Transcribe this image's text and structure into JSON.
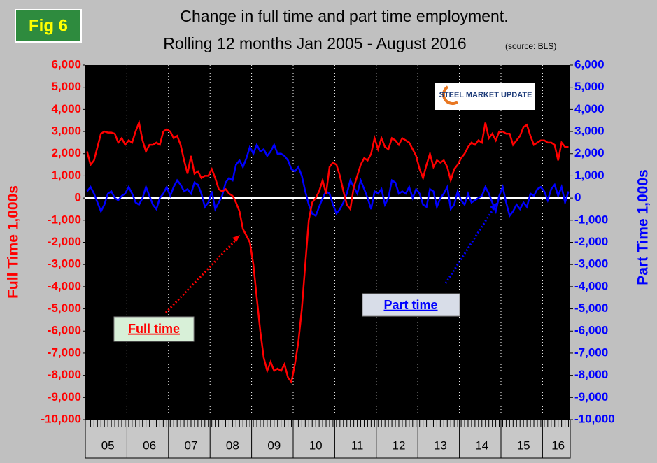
{
  "chart_data": {
    "type": "line",
    "fig_label": "Fig 6",
    "title": "Change in full time and part time employment.",
    "subtitle": "Rolling 12 months Jan 2005 - August 2016",
    "source": "(source: BLS)",
    "logo": "STEEL MARKET UPDATE",
    "ylabel": "Full Time 1,000s",
    "y2label": "Part Time 1,000s",
    "categories": [
      null,
      null,
      null,
      null,
      null,
      null,
      "05",
      null,
      null,
      null,
      null,
      null,
      null,
      null,
      null,
      null,
      null,
      null,
      "06",
      null,
      null,
      null,
      null,
      null,
      null,
      null,
      null,
      null,
      null,
      null,
      "07",
      null,
      null,
      null,
      null,
      null,
      null,
      null,
      null,
      null,
      null,
      null,
      "08",
      null,
      null,
      null,
      null,
      null,
      null,
      null,
      null,
      null,
      null,
      null,
      "09",
      null,
      null,
      null,
      null,
      null,
      null,
      null,
      null,
      null,
      null,
      null,
      "10",
      null,
      null,
      null,
      null,
      null,
      null,
      null,
      null,
      null,
      null,
      null,
      "11",
      null,
      null,
      null,
      null,
      null,
      null,
      null,
      null,
      null,
      null,
      null,
      "12",
      null,
      null,
      null,
      null,
      null,
      null,
      null,
      null,
      null,
      null,
      null,
      "13",
      null,
      null,
      null,
      null,
      null,
      null,
      null,
      null,
      null,
      null,
      null,
      "14",
      null,
      null,
      null,
      null,
      null,
      null,
      null,
      null,
      null,
      null,
      null,
      "15",
      null,
      null,
      null,
      null,
      null,
      null,
      null,
      null,
      null,
      "16",
      null,
      null,
      null
    ],
    "series": [
      {
        "name": "Full time",
        "color": "#ff0000",
        "values": [
          2100,
          1500,
          1700,
          2300,
          2900,
          3000,
          2950,
          2950,
          2900,
          2500,
          2700,
          2400,
          2600,
          2500,
          3000,
          3400,
          2600,
          2100,
          2400,
          2400,
          2500,
          2400,
          3000,
          3100,
          3000,
          2700,
          2800,
          2400,
          1700,
          1100,
          1900,
          1100,
          1200,
          900,
          1000,
          1000,
          1300,
          900,
          400,
          300,
          400,
          200,
          100,
          -200,
          -600,
          -1400,
          -1700,
          -2000,
          -3000,
          -4500,
          -6000,
          -7200,
          -7800,
          -7400,
          -7800,
          -7700,
          -7800,
          -7500,
          -8100,
          -8300,
          -7500,
          -6500,
          -5000,
          -3000,
          -1000,
          -200,
          0,
          300,
          800,
          200,
          1400,
          1600,
          1500,
          1000,
          300,
          -300,
          -500,
          500,
          1000,
          1500,
          1800,
          1700,
          2000,
          2700,
          2200,
          2700,
          2300,
          2200,
          2700,
          2600,
          2400,
          2700,
          2600,
          2500,
          2200,
          1900,
          1300,
          900,
          1500,
          2000,
          1400,
          1700,
          1600,
          1700,
          1400,
          800,
          1300,
          1500,
          1800,
          2000,
          2300,
          2500,
          2400,
          2600,
          2500,
          3400,
          2700,
          2900,
          2600,
          3000,
          3000,
          2900,
          2900,
          2400,
          2600,
          2800,
          3200,
          3300,
          2800,
          2400,
          2500,
          2600,
          2600,
          2500,
          2500,
          2400,
          1700,
          2500,
          2300,
          2300
        ]
      },
      {
        "name": "Part time",
        "color": "#0000ff",
        "axis": "y2",
        "values": [
          300,
          500,
          200,
          -200,
          -600,
          -300,
          200,
          300,
          0,
          -100,
          100,
          200,
          500,
          200,
          -200,
          -300,
          0,
          500,
          100,
          -300,
          -500,
          0,
          200,
          500,
          100,
          500,
          800,
          600,
          300,
          400,
          200,
          700,
          600,
          200,
          -400,
          -200,
          300,
          -500,
          -200,
          100,
          700,
          900,
          800,
          1500,
          1700,
          1400,
          1800,
          2300,
          2000,
          2400,
          2100,
          2200,
          1900,
          2100,
          2400,
          2000,
          2000,
          1900,
          1700,
          1300,
          1200,
          1400,
          1000,
          300,
          -300,
          -700,
          -800,
          -400,
          0,
          300,
          200,
          -300,
          -700,
          -500,
          -200,
          200,
          800,
          500,
          200,
          800,
          400,
          0,
          -500,
          300,
          200,
          400,
          -300,
          0,
          800,
          700,
          200,
          300,
          200,
          500,
          0,
          400,
          200,
          -300,
          -400,
          400,
          300,
          -400,
          0,
          200,
          500,
          -500,
          -300,
          300,
          -100,
          -300,
          200,
          -200,
          -100,
          0,
          100,
          500,
          200,
          -200,
          -600,
          100,
          500,
          -200,
          -800,
          -600,
          -300,
          -500,
          -200,
          -400,
          200,
          100,
          400,
          500,
          300,
          -100,
          400,
          600,
          100,
          500,
          -200,
          300
        ]
      }
    ],
    "ylim": [
      -10000,
      6000
    ],
    "yticks": [
      {
        "value": -10000,
        "label": "-10,000"
      },
      {
        "value": -9000,
        "label": "-9,000"
      },
      {
        "value": -8000,
        "label": "-8,000"
      },
      {
        "value": -7000,
        "label": "-7,000"
      },
      {
        "value": -6000,
        "label": "-6,000"
      },
      {
        "value": -5000,
        "label": "-5,000"
      },
      {
        "value": -4000,
        "label": "-4,000"
      },
      {
        "value": -3000,
        "label": "-3,000"
      },
      {
        "value": -2000,
        "label": "-2,000"
      },
      {
        "value": -1000,
        "label": "-1,000"
      },
      0,
      {
        "value": 1000,
        "label": "1,000"
      },
      {
        "value": 2000,
        "label": "2,000"
      },
      {
        "value": 3000,
        "label": "3,000"
      },
      {
        "value": 4000,
        "label": "4,000"
      },
      {
        "value": 5000,
        "label": "5,000"
      },
      {
        "value": 6000,
        "label": "6,000"
      }
    ],
    "y2lim": [
      -10000,
      6000
    ],
    "y2ticks": [
      {
        "value": -10000,
        "label": "-10,000"
      },
      {
        "value": -9000,
        "label": "-9,000"
      },
      {
        "value": -8000,
        "label": "-8,000"
      },
      {
        "value": -7000,
        "label": "-7,000"
      },
      {
        "value": -6000,
        "label": "-6,000"
      },
      {
        "value": -5000,
        "label": "-5,000"
      },
      {
        "value": -4000,
        "label": "-4,000"
      },
      {
        "value": -3000,
        "label": "-3,000"
      },
      {
        "value": -2000,
        "label": "-2,000"
      },
      {
        "value": -1000,
        "label": "-1,000"
      },
      0,
      {
        "value": 1000,
        "label": "1,000"
      },
      {
        "value": 2000,
        "label": "2,000"
      },
      {
        "value": 3000,
        "label": "3,000"
      },
      {
        "value": 4000,
        "label": "4,000"
      },
      {
        "value": 5000,
        "label": "5,000"
      },
      {
        "value": 6000,
        "label": "6,000"
      }
    ],
    "zero_line": true
  }
}
